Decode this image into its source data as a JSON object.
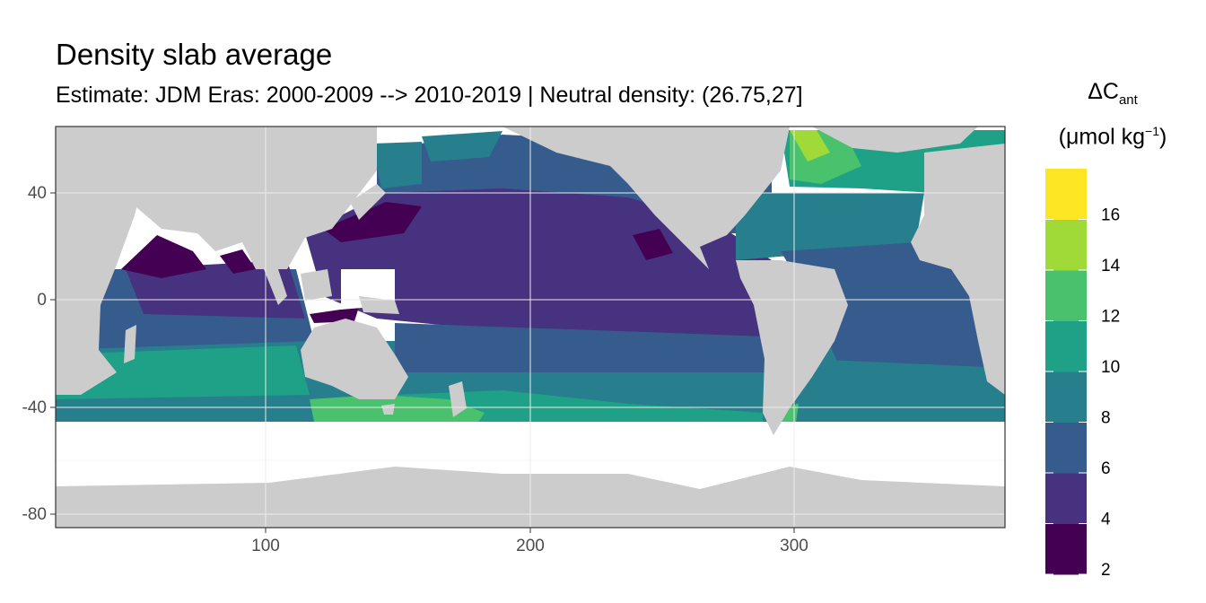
{
  "title": "Density slab average",
  "subtitle": "Estimate: JDM Eras: 2000-2009 --> 2010-2019 | Neutral density: (26.75,27]",
  "legend": {
    "symbol": "ΔC",
    "subscript": "ant",
    "unit_open": "(μmol kg",
    "unit_exp": "−1",
    "unit_close": ")",
    "breaks": [
      "16",
      "14",
      "12",
      "10",
      "8",
      "6",
      "4",
      "2"
    ],
    "colors": [
      "#440154",
      "#46327e",
      "#365c8d",
      "#277f8e",
      "#1fa187",
      "#4ac16d",
      "#a0da39",
      "#fde725"
    ]
  },
  "axes": {
    "x_ticks": [
      "100",
      "200",
      "300"
    ],
    "y_ticks": [
      "40",
      "0",
      "-40",
      "-80"
    ]
  },
  "colors": {
    "land": "#cccccc",
    "no_data": "#ffffff",
    "grid": "#ebebeb",
    "frame": "#333333"
  }
}
